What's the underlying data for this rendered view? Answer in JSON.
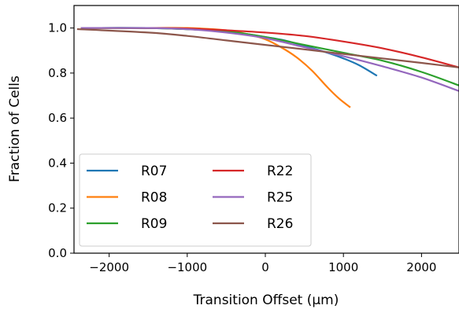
{
  "chart_data": {
    "type": "line",
    "title": "",
    "xlabel": "Transition Offset (μm)",
    "ylabel": "Fraction of Cells",
    "xlim": [
      -2450,
      2480
    ],
    "ylim": [
      0.0,
      1.1
    ],
    "xticks": [
      -2000,
      -1000,
      0,
      1000,
      2000
    ],
    "xtick_labels": [
      "−2000",
      "−1000",
      "0",
      "1000",
      "2000"
    ],
    "yticks": [
      0.0,
      0.2,
      0.4,
      0.6,
      0.8,
      1.0
    ],
    "ytick_labels": [
      "0.0",
      "0.2",
      "0.4",
      "0.6",
      "0.8",
      "1.0"
    ],
    "grid": false,
    "legend_position": "lower-left",
    "series": [
      {
        "name": "R07",
        "color": "#1f77b4",
        "x": [
          -2300,
          -1500,
          -1000,
          -500,
          0,
          250,
          500,
          750,
          1000,
          1200,
          1420
        ],
        "y": [
          1.0,
          1.0,
          0.995,
          0.985,
          0.96,
          0.945,
          0.92,
          0.895,
          0.865,
          0.835,
          0.79
        ]
      },
      {
        "name": "R08",
        "color": "#ff7f0e",
        "x": [
          -2350,
          -1500,
          -1000,
          -500,
          -200,
          0,
          200,
          400,
          600,
          800,
          950,
          1080
        ],
        "y": [
          1.0,
          1.0,
          1.0,
          0.99,
          0.97,
          0.95,
          0.915,
          0.87,
          0.81,
          0.735,
          0.685,
          0.65
        ]
      },
      {
        "name": "R09",
        "color": "#2ca02c",
        "x": [
          -2350,
          -1500,
          -1000,
          -500,
          0,
          500,
          1000,
          1500,
          2000,
          2480
        ],
        "y": [
          1.0,
          1.0,
          0.995,
          0.985,
          0.96,
          0.925,
          0.89,
          0.855,
          0.805,
          0.745
        ]
      },
      {
        "name": "R22",
        "color": "#d62728",
        "x": [
          -2350,
          -1500,
          -1000,
          -500,
          0,
          500,
          1000,
          1500,
          2000,
          2480
        ],
        "y": [
          1.0,
          1.0,
          0.998,
          0.99,
          0.98,
          0.965,
          0.94,
          0.91,
          0.87,
          0.825
        ]
      },
      {
        "name": "R25",
        "color": "#9467bd",
        "x": [
          -2350,
          -1500,
          -1000,
          -500,
          0,
          500,
          1000,
          1500,
          2000,
          2480
        ],
        "y": [
          1.0,
          1.0,
          0.995,
          0.98,
          0.955,
          0.915,
          0.875,
          0.83,
          0.78,
          0.72
        ]
      },
      {
        "name": "R26",
        "color": "#8c564b",
        "x": [
          -2400,
          -1500,
          -1000,
          -500,
          0,
          500,
          1000,
          1500,
          2000,
          2480
        ],
        "y": [
          0.995,
          0.98,
          0.965,
          0.945,
          0.925,
          0.905,
          0.885,
          0.865,
          0.845,
          0.825
        ]
      }
    ]
  }
}
